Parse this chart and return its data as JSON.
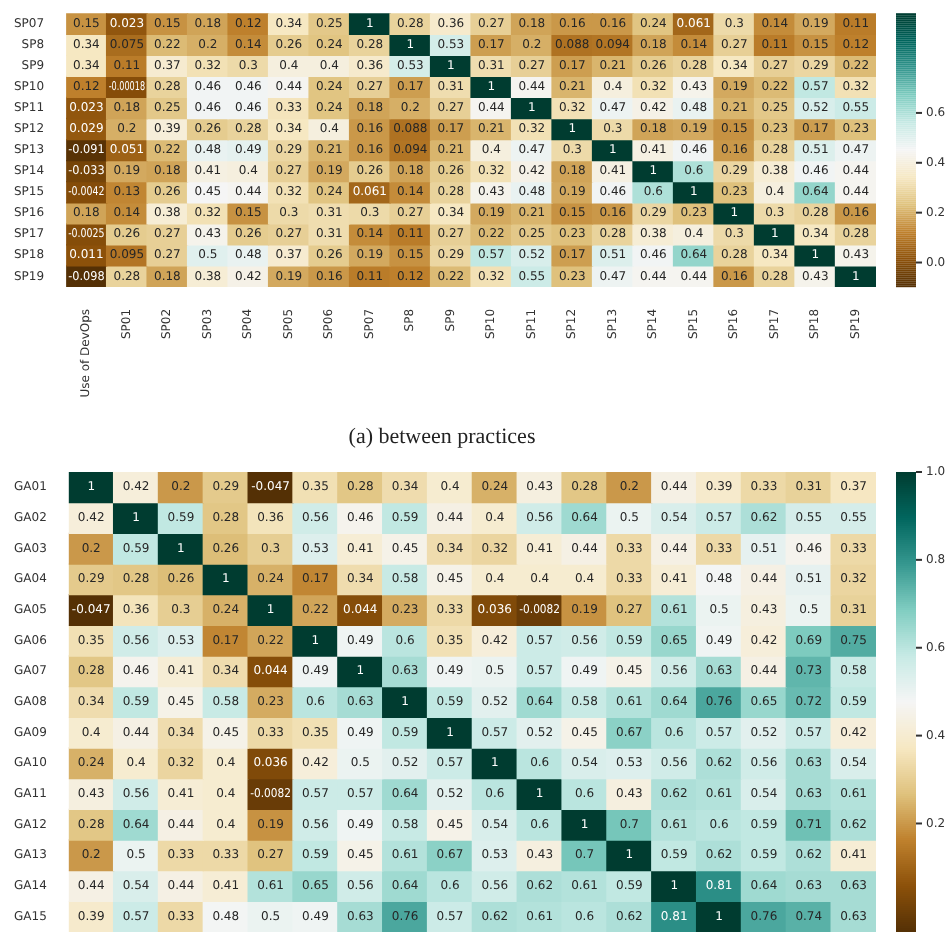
{
  "chart_data": [
    {
      "type": "heatmap",
      "title": "(a) between practices",
      "data_labels": true,
      "clim": [
        -0.098,
        1
      ],
      "cticks": [
        {
          "value": 0,
          "label": "0.0"
        },
        0.2,
        0.4,
        0.6
      ],
      "categories": [
        "Use of DevOps",
        "SP01",
        "SP02",
        "SP03",
        "SP04",
        "SP05",
        "SP06",
        "SP07",
        "SP8",
        "SP9",
        "SP10",
        "SP11",
        "SP12",
        "SP13",
        "SP14",
        "SP15",
        "SP16",
        "SP17",
        "SP18",
        "SP19"
      ],
      "y_categories": [
        "SP07",
        "SP8",
        "SP9",
        "SP10",
        "SP11",
        "SP12",
        "SP13",
        "SP14",
        "SP15",
        "SP16",
        "SP17",
        "SP18",
        "SP19"
      ],
      "cells": [
        [
          0.15,
          0.023,
          0.15,
          0.18,
          0.12,
          0.34,
          0.25,
          1,
          0.28,
          0.36,
          0.27,
          0.18,
          0.16,
          0.16,
          0.24,
          0.061,
          0.3,
          0.14,
          0.19,
          0.11
        ],
        [
          0.34,
          0.075,
          0.22,
          0.2,
          0.14,
          0.26,
          0.24,
          0.28,
          1,
          0.53,
          0.17,
          0.2,
          0.088,
          0.094,
          0.18,
          0.14,
          0.27,
          0.11,
          0.15,
          0.12
        ],
        [
          0.34,
          0.11,
          0.37,
          0.32,
          0.3,
          0.4,
          0.4,
          0.36,
          0.53,
          1,
          0.31,
          0.27,
          0.17,
          0.21,
          0.26,
          0.28,
          0.34,
          0.27,
          0.29,
          0.22
        ],
        [
          0.12,
          -0.00018,
          0.28,
          0.46,
          0.46,
          0.44,
          0.24,
          0.27,
          0.17,
          0.31,
          1,
          0.44,
          0.21,
          0.4,
          0.32,
          0.43,
          0.19,
          0.22,
          0.57,
          0.32
        ],
        [
          0.023,
          0.18,
          0.25,
          0.46,
          0.46,
          0.33,
          0.24,
          0.18,
          0.2,
          0.27,
          0.44,
          1,
          0.32,
          0.47,
          0.42,
          0.48,
          0.21,
          0.25,
          0.52,
          0.55
        ],
        [
          0.029,
          0.2,
          0.39,
          0.26,
          0.28,
          0.34,
          0.4,
          0.16,
          0.088,
          0.17,
          0.21,
          0.32,
          1,
          0.3,
          0.18,
          0.19,
          0.15,
          0.23,
          0.17,
          0.23
        ],
        [
          -0.091,
          0.051,
          0.22,
          0.48,
          0.49,
          0.29,
          0.21,
          0.16,
          0.094,
          0.21,
          0.4,
          0.47,
          0.3,
          1,
          0.41,
          0.46,
          0.16,
          0.28,
          0.51,
          0.47
        ],
        [
          -0.033,
          0.19,
          0.18,
          0.41,
          0.4,
          0.27,
          0.19,
          0.26,
          0.18,
          0.26,
          0.32,
          0.42,
          0.18,
          0.41,
          1,
          0.6,
          0.29,
          0.38,
          0.46,
          0.44
        ],
        [
          -0.0042,
          0.13,
          0.26,
          0.45,
          0.44,
          0.32,
          0.24,
          0.061,
          0.14,
          0.28,
          0.43,
          0.48,
          0.19,
          0.46,
          0.6,
          1,
          0.23,
          0.4,
          0.64,
          0.44
        ],
        [
          0.18,
          0.14,
          0.38,
          0.32,
          0.15,
          0.3,
          0.31,
          0.3,
          0.27,
          0.34,
          0.19,
          0.21,
          0.15,
          0.16,
          0.29,
          0.23,
          1,
          0.3,
          0.28,
          0.16
        ],
        [
          -0.0025,
          0.26,
          0.27,
          0.43,
          0.26,
          0.27,
          0.31,
          0.14,
          0.11,
          0.27,
          0.22,
          0.25,
          0.23,
          0.28,
          0.38,
          0.4,
          0.3,
          1,
          0.34,
          0.28
        ],
        [
          0.011,
          0.095,
          0.27,
          0.5,
          0.48,
          0.37,
          0.26,
          0.19,
          0.15,
          0.29,
          0.57,
          0.52,
          0.17,
          0.51,
          0.46,
          0.64,
          0.28,
          0.34,
          1,
          0.43
        ],
        [
          -0.098,
          0.28,
          0.18,
          0.38,
          0.42,
          0.19,
          0.16,
          0.11,
          0.12,
          0.22,
          0.32,
          0.55,
          0.23,
          0.47,
          0.44,
          0.44,
          0.16,
          0.28,
          0.43,
          1
        ]
      ]
    },
    {
      "type": "heatmap",
      "data_labels": true,
      "tick_labels": "y",
      "clim": [
        -0.047,
        1
      ],
      "cticks": [
        0.2,
        0.4,
        0.6,
        0.8,
        {
          "value": 1,
          "label": "1.0"
        }
      ],
      "categories": [
        null,
        null,
        null,
        null,
        null,
        null,
        null,
        null,
        null,
        null,
        null,
        null,
        null,
        null,
        null,
        null,
        null,
        null
      ],
      "y_categories": [
        "GA01",
        "GA02",
        "GA03",
        "GA04",
        "GA05",
        "GA06",
        "GA07",
        "GA08",
        "GA09",
        "GA10",
        "GA11",
        "GA12",
        "GA13",
        "GA14",
        "GA15"
      ],
      "cells": [
        [
          1,
          0.42,
          0.2,
          0.29,
          -0.047,
          0.35,
          0.28,
          0.34,
          0.4,
          0.24,
          0.43,
          0.28,
          0.2,
          0.44,
          0.39,
          0.33,
          0.31,
          0.37
        ],
        [
          0.42,
          1,
          0.59,
          0.28,
          0.36,
          0.56,
          0.46,
          0.59,
          0.44,
          0.4,
          0.56,
          0.64,
          0.5,
          0.54,
          0.57,
          0.62,
          0.55,
          0.55
        ],
        [
          0.2,
          0.59,
          1,
          0.26,
          0.3,
          0.53,
          0.41,
          0.45,
          0.34,
          0.32,
          0.41,
          0.44,
          0.33,
          0.44,
          0.33,
          0.51,
          0.46,
          0.33
        ],
        [
          0.29,
          0.28,
          0.26,
          1,
          0.24,
          0.17,
          0.34,
          0.58,
          0.45,
          0.4,
          0.4,
          0.4,
          0.33,
          0.41,
          0.48,
          0.44,
          0.51,
          0.32
        ],
        [
          -0.047,
          0.36,
          0.3,
          0.24,
          1,
          0.22,
          0.044,
          0.23,
          0.33,
          0.036,
          -0.0082,
          0.19,
          0.27,
          0.61,
          0.5,
          0.43,
          0.5,
          0.31
        ],
        [
          0.35,
          0.56,
          0.53,
          0.17,
          0.22,
          1,
          0.49,
          0.6,
          0.35,
          0.42,
          0.57,
          0.56,
          0.59,
          0.65,
          0.49,
          0.42,
          0.69,
          0.75
        ],
        [
          0.28,
          0.46,
          0.41,
          0.34,
          0.044,
          0.49,
          1,
          0.63,
          0.49,
          0.5,
          0.57,
          0.49,
          0.45,
          0.56,
          0.63,
          0.44,
          0.73,
          0.58
        ],
        [
          0.34,
          0.59,
          0.45,
          0.58,
          0.23,
          0.6,
          0.63,
          1,
          0.59,
          0.52,
          0.64,
          0.58,
          0.61,
          0.64,
          0.76,
          0.65,
          0.72,
          0.59
        ],
        [
          0.4,
          0.44,
          0.34,
          0.45,
          0.33,
          0.35,
          0.49,
          0.59,
          1,
          0.57,
          0.52,
          0.45,
          0.67,
          0.6,
          0.57,
          0.52,
          0.57,
          0.42
        ],
        [
          0.24,
          0.4,
          0.32,
          0.4,
          0.036,
          0.42,
          0.5,
          0.52,
          0.57,
          1,
          0.6,
          0.54,
          0.53,
          0.56,
          0.62,
          0.56,
          0.63,
          0.54
        ],
        [
          0.43,
          0.56,
          0.41,
          0.4,
          -0.0082,
          0.57,
          0.57,
          0.64,
          0.52,
          0.6,
          1,
          0.6,
          0.43,
          0.62,
          0.61,
          0.54,
          0.63,
          0.61
        ],
        [
          0.28,
          0.64,
          0.44,
          0.4,
          0.19,
          0.56,
          0.49,
          0.58,
          0.45,
          0.54,
          0.6,
          1,
          0.7,
          0.61,
          0.6,
          0.59,
          0.71,
          0.62
        ],
        [
          0.2,
          0.5,
          0.33,
          0.33,
          0.27,
          0.59,
          0.45,
          0.61,
          0.67,
          0.53,
          0.43,
          0.7,
          1,
          0.59,
          0.62,
          0.59,
          0.62,
          0.41
        ],
        [
          0.44,
          0.54,
          0.44,
          0.41,
          0.61,
          0.65,
          0.56,
          0.64,
          0.6,
          0.56,
          0.62,
          0.61,
          0.59,
          1,
          0.81,
          0.64,
          0.63,
          0.63
        ],
        [
          0.39,
          0.57,
          0.33,
          0.48,
          0.5,
          0.49,
          0.63,
          0.76,
          0.57,
          0.62,
          0.61,
          0.6,
          0.62,
          0.81,
          1,
          0.76,
          0.74,
          0.63
        ]
      ]
    }
  ]
}
